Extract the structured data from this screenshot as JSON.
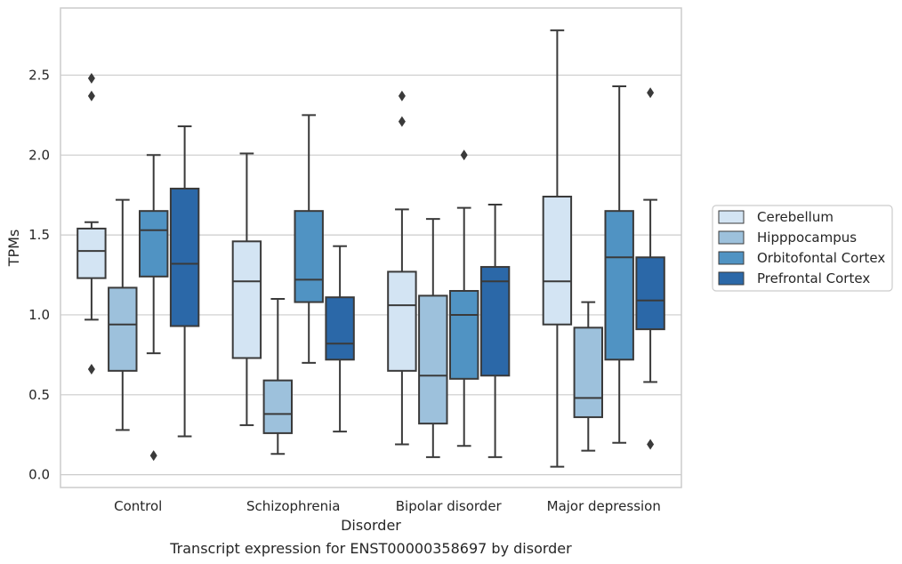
{
  "chart_data": {
    "type": "box",
    "title": "",
    "caption": "Transcript expression for ENST00000358697 by disorder",
    "xlabel": "Disorder",
    "ylabel": "TPMs",
    "ylim": [
      -0.08,
      2.92
    ],
    "yticks": [
      0.0,
      0.5,
      1.0,
      1.5,
      2.0,
      2.5
    ],
    "ytick_labels": [
      "0.0",
      "0.5",
      "1.0",
      "1.5",
      "2.0",
      "2.5"
    ],
    "grid": "horizontal",
    "legend_position": "right",
    "categories": [
      "Control",
      "Schizophrenia",
      "Bipolar disorder",
      "Major depression"
    ],
    "series": [
      {
        "name": "Cerebellum",
        "color": "#d3e4f3",
        "boxes": [
          {
            "whisker_low": 0.97,
            "q1": 1.23,
            "median": 1.4,
            "q3": 1.54,
            "whisker_high": 1.58,
            "outliers": [
              2.48,
              2.37,
              0.66
            ]
          },
          {
            "whisker_low": 0.31,
            "q1": 0.73,
            "median": 1.21,
            "q3": 1.46,
            "whisker_high": 2.01,
            "outliers": []
          },
          {
            "whisker_low": 0.19,
            "q1": 0.65,
            "median": 1.06,
            "q3": 1.27,
            "whisker_high": 1.66,
            "outliers": [
              2.37,
              2.21
            ]
          },
          {
            "whisker_low": 0.05,
            "q1": 0.94,
            "median": 1.21,
            "q3": 1.74,
            "whisker_high": 2.78,
            "outliers": []
          }
        ]
      },
      {
        "name": "Hipppocampus",
        "color": "#9dc1dc",
        "boxes": [
          {
            "whisker_low": 0.28,
            "q1": 0.65,
            "median": 0.94,
            "q3": 1.17,
            "whisker_high": 1.72,
            "outliers": []
          },
          {
            "whisker_low": 0.13,
            "q1": 0.26,
            "median": 0.38,
            "q3": 0.59,
            "whisker_high": 1.1,
            "outliers": []
          },
          {
            "whisker_low": 0.11,
            "q1": 0.32,
            "median": 0.62,
            "q3": 1.12,
            "whisker_high": 1.6,
            "outliers": []
          },
          {
            "whisker_low": 0.15,
            "q1": 0.36,
            "median": 0.48,
            "q3": 0.92,
            "whisker_high": 1.08,
            "outliers": []
          }
        ]
      },
      {
        "name": "Orbitofontal Cortex",
        "color": "#5093c3",
        "boxes": [
          {
            "whisker_low": 0.76,
            "q1": 1.24,
            "median": 1.53,
            "q3": 1.65,
            "whisker_high": 2.0,
            "outliers": [
              0.12
            ]
          },
          {
            "whisker_low": 0.7,
            "q1": 1.08,
            "median": 1.22,
            "q3": 1.65,
            "whisker_high": 2.25,
            "outliers": []
          },
          {
            "whisker_low": 0.18,
            "q1": 0.6,
            "median": 1.0,
            "q3": 1.15,
            "whisker_high": 1.67,
            "outliers": [
              2.0
            ]
          },
          {
            "whisker_low": 0.2,
            "q1": 0.72,
            "median": 1.36,
            "q3": 1.65,
            "whisker_high": 2.43,
            "outliers": []
          }
        ]
      },
      {
        "name": "Prefrontal Cortex",
        "color": "#2b68a8",
        "boxes": [
          {
            "whisker_low": 0.24,
            "q1": 0.93,
            "median": 1.32,
            "q3": 1.79,
            "whisker_high": 2.18,
            "outliers": []
          },
          {
            "whisker_low": 0.27,
            "q1": 0.72,
            "median": 0.82,
            "q3": 1.11,
            "whisker_high": 1.43,
            "outliers": []
          },
          {
            "whisker_low": 0.11,
            "q1": 0.62,
            "median": 1.21,
            "q3": 1.3,
            "whisker_high": 1.69,
            "outliers": []
          },
          {
            "whisker_low": 0.58,
            "q1": 0.91,
            "median": 1.09,
            "q3": 1.36,
            "whisker_high": 1.72,
            "outliers": [
              2.39,
              0.19
            ]
          }
        ]
      }
    ],
    "colors": {
      "grid": "#cccccc",
      "frame": "#cccccc",
      "box_edge": "#3a3a3a",
      "outlier": "#3a3a3a",
      "legend_border": "#cccccc"
    }
  }
}
